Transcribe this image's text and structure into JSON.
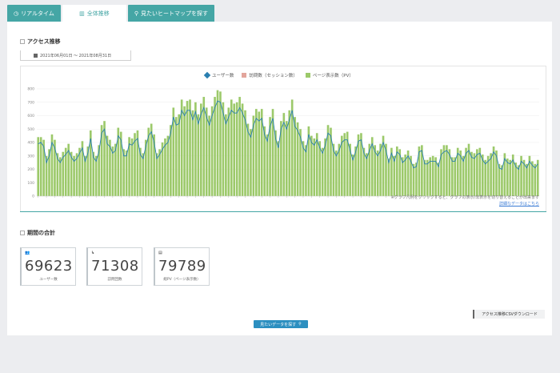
{
  "tabs": [
    {
      "label": "リアルタイム",
      "icon": "clock-icon"
    },
    {
      "label": "全体推移",
      "icon": "bar-chart-icon"
    },
    {
      "label": "見たいヒートマップを探す",
      "icon": "search-icon"
    }
  ],
  "access_section": {
    "title": "アクセス推移",
    "period_label": "2021年06月01日 ～ 2021年08月31日"
  },
  "legend": {
    "series1": "ユーザー数",
    "series2": "訪問数（セッション数）",
    "series3": "ページ表示数（PV）"
  },
  "notes": {
    "line1": "※グラフ凡例をクリックすると、グラフの表示/非表示を切り替えることが出来ます",
    "link": "詳細なデータはこちら"
  },
  "totals_section": {
    "title": "期間の合計",
    "cards": [
      {
        "value": "69623",
        "label": "ユーザー数"
      },
      {
        "value": "71308",
        "label": "訪問回数"
      },
      {
        "value": "79789",
        "label": "総PV（ページ表示数）"
      }
    ]
  },
  "buttons": {
    "csv": "アクセス推移CSVダウンロード",
    "view": "見たいデータを探す"
  },
  "colors": {
    "accent": "#45a6a5",
    "bar": "#9cc96a",
    "line": "#2a7fb0",
    "button": "#2c8fc0"
  },
  "chart_data": {
    "type": "bar",
    "x": "daily",
    "ylim": [
      0,
      800
    ],
    "yticks": [
      0,
      100,
      200,
      300,
      400,
      500,
      600,
      700,
      800
    ],
    "series": [
      {
        "name": "ページ表示数（PV）",
        "type": "bar",
        "values": [
          440,
          440,
          420,
          300,
          350,
          460,
          420,
          320,
          290,
          330,
          360,
          390,
          330,
          300,
          320,
          360,
          410,
          300,
          370,
          490,
          330,
          300,
          380,
          530,
          560,
          450,
          420,
          370,
          390,
          510,
          480,
          350,
          340,
          440,
          430,
          470,
          490,
          360,
          320,
          420,
          510,
          540,
          460,
          320,
          350,
          400,
          430,
          450,
          530,
          660,
          590,
          610,
          720,
          670,
          710,
          720,
          640,
          700,
          610,
          690,
          740,
          660,
          600,
          670,
          740,
          790,
          780,
          700,
          610,
          660,
          720,
          690,
          700,
          740,
          690,
          640,
          540,
          500,
          600,
          650,
          630,
          650,
          520,
          460,
          590,
          650,
          490,
          410,
          560,
          620,
          560,
          640,
          720,
          590,
          550,
          500,
          410,
          380,
          520,
          450,
          430,
          470,
          410,
          360,
          430,
          530,
          510,
          390,
          340,
          390,
          450,
          470,
          480,
          390,
          310,
          370,
          460,
          470,
          360,
          320,
          390,
          440,
          380,
          340,
          390,
          450,
          390,
          280,
          360,
          300,
          370,
          350,
          290,
          310,
          340,
          300,
          240,
          250,
          370,
          380,
          270,
          270,
          290,
          300,
          290,
          250,
          350,
          380,
          380,
          350,
          290,
          290,
          360,
          340,
          300,
          360,
          390,
          330,
          320,
          350,
          360,
          310,
          270,
          300,
          320,
          370,
          340,
          240,
          230,
          320,
          280,
          270,
          310,
          250,
          230,
          300,
          270,
          240,
          300,
          260,
          240,
          270
        ]
      },
      {
        "name": "ユーザー数",
        "type": "line",
        "values": [
          390,
          400,
          370,
          250,
          300,
          400,
          360,
          280,
          250,
          290,
          310,
          340,
          290,
          260,
          280,
          320,
          360,
          260,
          320,
          430,
          290,
          260,
          330,
          470,
          500,
          390,
          370,
          320,
          340,
          450,
          420,
          300,
          300,
          390,
          380,
          410,
          430,
          310,
          280,
          370,
          450,
          480,
          400,
          280,
          310,
          350,
          380,
          400,
          470,
          590,
          530,
          540,
          640,
          600,
          640,
          640,
          570,
          630,
          540,
          610,
          660,
          590,
          530,
          600,
          660,
          710,
          700,
          620,
          540,
          590,
          640,
          620,
          620,
          660,
          620,
          570,
          480,
          440,
          530,
          580,
          560,
          580,
          460,
          410,
          520,
          580,
          430,
          360,
          500,
          550,
          500,
          570,
          640,
          520,
          490,
          440,
          360,
          330,
          460,
          400,
          380,
          420,
          360,
          320,
          380,
          470,
          450,
          340,
          300,
          340,
          400,
          420,
          420,
          340,
          270,
          330,
          410,
          420,
          320,
          280,
          340,
          390,
          330,
          300,
          340,
          400,
          340,
          250,
          320,
          260,
          330,
          310,
          250,
          270,
          300,
          260,
          210,
          220,
          330,
          340,
          240,
          240,
          260,
          260,
          260,
          220,
          310,
          330,
          340,
          310,
          260,
          260,
          320,
          300,
          260,
          320,
          340,
          290,
          280,
          310,
          320,
          270,
          240,
          260,
          280,
          330,
          300,
          210,
          200,
          280,
          250,
          240,
          270,
          220,
          200,
          260,
          240,
          210,
          260,
          230,
          210,
          240
        ]
      }
    ]
  }
}
